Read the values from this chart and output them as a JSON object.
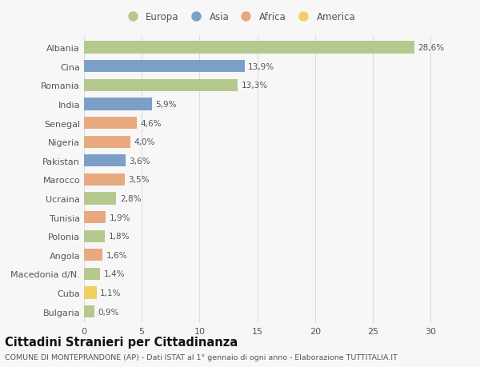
{
  "categories": [
    "Albania",
    "Cina",
    "Romania",
    "India",
    "Senegal",
    "Nigeria",
    "Pakistan",
    "Marocco",
    "Ucraina",
    "Tunisia",
    "Polonia",
    "Angola",
    "Macedonia d/N.",
    "Cuba",
    "Bulgaria"
  ],
  "values": [
    28.6,
    13.9,
    13.3,
    5.9,
    4.6,
    4.0,
    3.6,
    3.5,
    2.8,
    1.9,
    1.8,
    1.6,
    1.4,
    1.1,
    0.9
  ],
  "labels": [
    "28,6%",
    "13,9%",
    "13,3%",
    "5,9%",
    "4,6%",
    "4,0%",
    "3,6%",
    "3,5%",
    "2,8%",
    "1,9%",
    "1,8%",
    "1,6%",
    "1,4%",
    "1,1%",
    "0,9%"
  ],
  "continents": [
    "Europa",
    "Asia",
    "Europa",
    "Asia",
    "Africa",
    "Africa",
    "Asia",
    "Africa",
    "Europa",
    "Africa",
    "Europa",
    "Africa",
    "Europa",
    "America",
    "Europa"
  ],
  "continent_colors": {
    "Europa": "#b5c98e",
    "Asia": "#7b9fc7",
    "Africa": "#e8a97e",
    "America": "#f0d060"
  },
  "legend_order": [
    "Europa",
    "Asia",
    "Africa",
    "America"
  ],
  "xlim": [
    0,
    32
  ],
  "xticks": [
    0,
    5,
    10,
    15,
    20,
    25,
    30
  ],
  "title": "Cittadini Stranieri per Cittadinanza",
  "subtitle": "COMUNE DI MONTEPRANDONE (AP) - Dati ISTAT al 1° gennaio di ogni anno - Elaborazione TUTTITALIA.IT",
  "background_color": "#f7f7f7",
  "bar_height": 0.65,
  "label_fontsize": 7.5,
  "title_fontsize": 10.5,
  "subtitle_fontsize": 6.8,
  "legend_fontsize": 8.5,
  "ytick_fontsize": 8.0,
  "xtick_fontsize": 8.0,
  "grid_color": "#dddddd",
  "text_color": "#555555",
  "title_color": "#111111"
}
